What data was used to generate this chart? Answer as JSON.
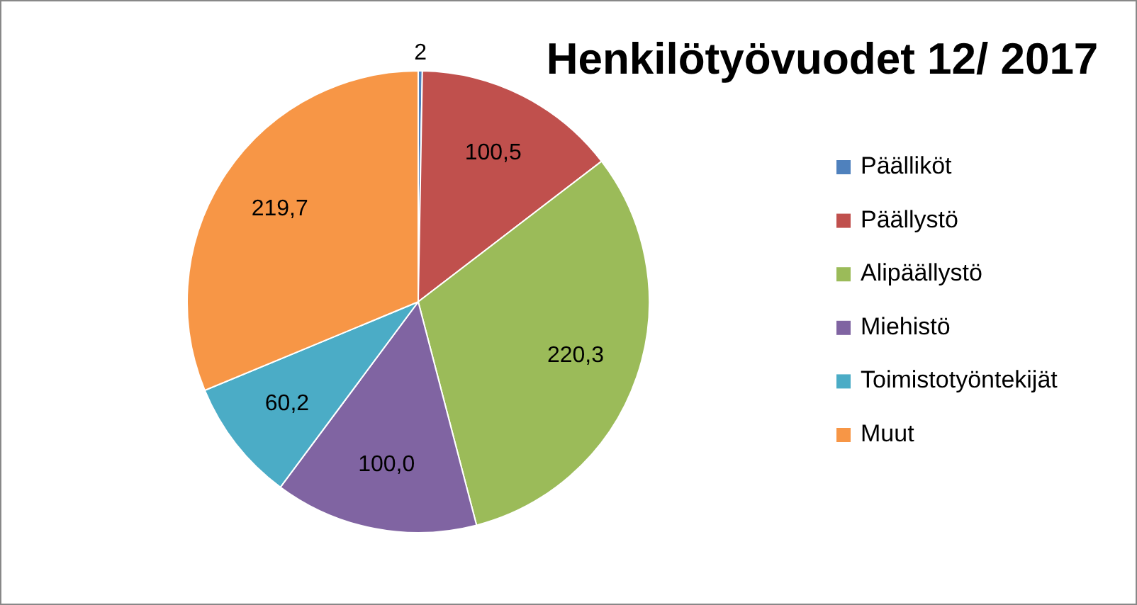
{
  "chart_data": {
    "type": "pie",
    "title": "Henkilötyövuodet 12/ 2017",
    "categories": [
      "Päälliköt",
      "Päällystö",
      "Alipäällystö",
      "Miehistö",
      "Toimistotyöntekijät",
      "Muut"
    ],
    "values": [
      2,
      100.5,
      220.3,
      100.0,
      60.2,
      219.7
    ],
    "colors": [
      "#4f81bd",
      "#c0504d",
      "#9bbb59",
      "#8064a2",
      "#4bacc6",
      "#f79646"
    ],
    "value_labels": [
      "2",
      "100,5",
      "220,3",
      "100,0",
      "60,2",
      "219,7"
    ],
    "legend": "right"
  }
}
